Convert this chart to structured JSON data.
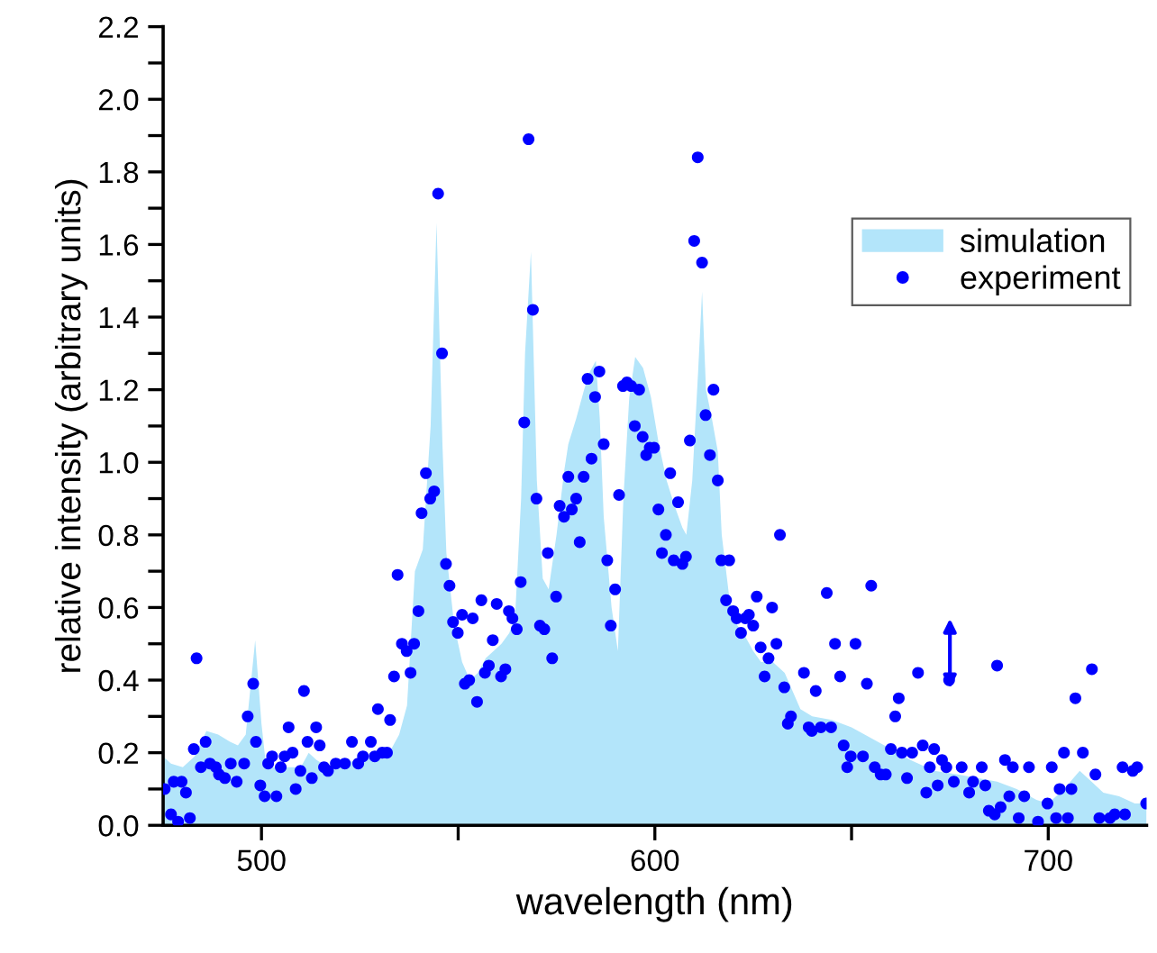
{
  "chart_data": {
    "type": "area",
    "xlabel": "wavelength (nm)",
    "ylabel": "relative intensity (arbitrary units)",
    "xlim": [
      475,
      725
    ],
    "xticks": [
      500,
      {
        "value": 550,
        "label": null
      },
      600,
      {
        "value": 650,
        "label": null
      },
      700
    ],
    "ylim": [
      0,
      2.2
    ],
    "yticks": [
      {
        "value": 0,
        "label": "0.0"
      },
      {
        "value": 0.1,
        "label": null
      },
      {
        "value": 0.2,
        "label": "0.2"
      },
      {
        "value": 0.3,
        "label": null
      },
      {
        "value": 0.4,
        "label": "0.4"
      },
      {
        "value": 0.5,
        "label": null
      },
      {
        "value": 0.6,
        "label": "0.6"
      },
      {
        "value": 0.7,
        "label": null
      },
      {
        "value": 0.8,
        "label": "0.8"
      },
      {
        "value": 0.9,
        "label": null
      },
      {
        "value": 1.0,
        "label": "1.0"
      },
      {
        "value": 1.1,
        "label": null
      },
      {
        "value": 1.2,
        "label": "1.2"
      },
      {
        "value": 1.3,
        "label": null
      },
      {
        "value": 1.4,
        "label": "1.4"
      },
      {
        "value": 1.5,
        "label": null
      },
      {
        "value": 1.6,
        "label": "1.6"
      },
      {
        "value": 1.7,
        "label": null
      },
      {
        "value": 1.8,
        "label": "1.8"
      },
      {
        "value": 1.9,
        "label": null
      },
      {
        "value": 2.0,
        "label": "2.0"
      },
      {
        "value": 2.1,
        "label": null
      },
      {
        "value": 2.2,
        "label": "2.2"
      }
    ],
    "grid": false,
    "legend": "top right",
    "series": [
      {
        "name": "simulation",
        "color": "#b3e5fa",
        "x": [
          475,
          477,
          480,
          483,
          486,
          489,
          492,
          494,
          496,
          498.4,
          500,
          501,
          503,
          506,
          510,
          512,
          514,
          517,
          520,
          525,
          530,
          533,
          535,
          537,
          539,
          541,
          543,
          544.5,
          546,
          547,
          549,
          551,
          553,
          555,
          557,
          559,
          561,
          563,
          564.5,
          566,
          567,
          568.5,
          570,
          571.5,
          573,
          575,
          577,
          578,
          580,
          582,
          583.5,
          585,
          586,
          587,
          589,
          590.6,
          592,
          593.5,
          595,
          597,
          599,
          601,
          603,
          605,
          607,
          608,
          609.5,
          611,
          612,
          613,
          614.5,
          616,
          617,
          619,
          621,
          623,
          625,
          627,
          630,
          633,
          637,
          640,
          645,
          650,
          655,
          660,
          665,
          671,
          677,
          682,
          687,
          692,
          697,
          700,
          704,
          708,
          711,
          714,
          718,
          722,
          725
        ],
        "values": [
          0.19,
          0.17,
          0.16,
          0.19,
          0.26,
          0.25,
          0.23,
          0.22,
          0.25,
          0.51,
          0.28,
          0.18,
          0.16,
          0.16,
          0.16,
          0.2,
          0.18,
          0.16,
          0.17,
          0.18,
          0.19,
          0.21,
          0.25,
          0.33,
          0.7,
          0.76,
          1.1,
          1.66,
          1.05,
          0.75,
          0.55,
          0.45,
          0.4,
          0.42,
          0.46,
          0.48,
          0.5,
          0.53,
          0.58,
          0.9,
          1.3,
          1.58,
          0.95,
          0.68,
          0.65,
          0.8,
          0.98,
          1.05,
          1.12,
          1.2,
          1.25,
          1.28,
          1.12,
          0.85,
          0.6,
          0.48,
          0.9,
          1.18,
          1.29,
          1.26,
          1.18,
          1.05,
          0.95,
          0.88,
          0.82,
          0.8,
          0.95,
          1.25,
          1.47,
          1.2,
          1.12,
          1.03,
          0.8,
          0.62,
          0.55,
          0.52,
          0.48,
          0.45,
          0.45,
          0.42,
          0.32,
          0.3,
          0.29,
          0.27,
          0.24,
          0.21,
          0.18,
          0.15,
          0.14,
          0.13,
          0.12,
          0.1,
          0.07,
          0.06,
          0.1,
          0.15,
          0.12,
          0.09,
          0.08,
          0.06,
          0.06
        ]
      },
      {
        "name": "experiment",
        "type": "scatter",
        "marker": "circle",
        "color": "#0000ff",
        "x": [
          475.4,
          477.0,
          477.7,
          479.7,
          478.8,
          480.8,
          481.8,
          482.8,
          483.5,
          484.6,
          485.8,
          486.9,
          488.4,
          489.2,
          490.7,
          492.2,
          493.7,
          495.6,
          496.5,
          497.9,
          498.6,
          499.7,
          500.8,
          501.7,
          502.7,
          503.8,
          504.9,
          505.9,
          506.9,
          507.9,
          508.7,
          509.9,
          510.8,
          511.7,
          512.8,
          513.9,
          514.8,
          515.9,
          516.9,
          518.9,
          521.2,
          523.0,
          524.6,
          525.8,
          527.8,
          528.8,
          529.6,
          530.7,
          531.9,
          532.7,
          533.7,
          534.6,
          535.7,
          536.9,
          537.9,
          538.8,
          539.9,
          540.7,
          541.8,
          542.9,
          543.9,
          544.9,
          545.9,
          546.9,
          547.8,
          548.7,
          549.9,
          551.0,
          551.7,
          552.8,
          553.7,
          554.8,
          555.9,
          556.8,
          557.8,
          558.8,
          559.8,
          560.9,
          562.0,
          562.9,
          563.8,
          564.9,
          565.9,
          566.8,
          567.9,
          569.0,
          569.9,
          570.8,
          571.9,
          572.8,
          573.9,
          574.9,
          575.8,
          576.9,
          578.0,
          578.9,
          580.0,
          580.9,
          581.9,
          582.9,
          583.9,
          584.8,
          585.9,
          587.0,
          587.9,
          588.8,
          589.9,
          590.9,
          591.9,
          592.9,
          594.0,
          594.9,
          596.0,
          596.9,
          597.8,
          598.7,
          599.8,
          600.9,
          601.8,
          602.8,
          603.9,
          604.8,
          605.9,
          607.0,
          607.9,
          608.9,
          610.0,
          610.9,
          612.0,
          612.9,
          614.0,
          614.9,
          616.0,
          616.9,
          618.1,
          618.9,
          619.9,
          620.8,
          621.9,
          623.0,
          623.9,
          625.0,
          625.9,
          626.9,
          627.9,
          628.9,
          629.8,
          630.9,
          631.8,
          632.9,
          633.8,
          634.6,
          637.9,
          639.1,
          639.9,
          640.9,
          642.2,
          643.7,
          644.8,
          645.8,
          647.1,
          648.0,
          648.9,
          649.8,
          651.0,
          652.9,
          653.9,
          655.0,
          655.9,
          657.4,
          658.7,
          660.0,
          661.1,
          662.0,
          662.8,
          664.1,
          665.4,
          666.9,
          668.1,
          669.0,
          669.9,
          671.0,
          671.9,
          673.0,
          674.1,
          674.8,
          676.0,
          678.0,
          679.9,
          680.9,
          683.1,
          684.0,
          684.9,
          686.4,
          687.0,
          687.9,
          689.0,
          690.1,
          691.0,
          692.5,
          693.9,
          695.1,
          697.4,
          699.8,
          700.9,
          702.0,
          702.9,
          704.0,
          705.0,
          705.9,
          706.9,
          708.8,
          711.1,
          712.0,
          713.0,
          715.7,
          716.9,
          718.9,
          719.5,
          721.5,
          722.6,
          724.9
        ],
        "values": [
          0.1,
          0.03,
          0.12,
          0.12,
          0.01,
          0.09,
          0.02,
          0.21,
          0.46,
          0.16,
          0.23,
          0.17,
          0.16,
          0.14,
          0.13,
          0.17,
          0.12,
          0.17,
          0.3,
          0.39,
          0.23,
          0.11,
          0.08,
          0.17,
          0.19,
          0.08,
          0.16,
          0.19,
          0.27,
          0.2,
          0.1,
          0.15,
          0.37,
          0.23,
          0.13,
          0.27,
          0.22,
          0.16,
          0.15,
          0.17,
          0.17,
          0.23,
          0.17,
          0.19,
          0.23,
          0.19,
          0.32,
          0.2,
          0.2,
          0.29,
          0.41,
          0.69,
          0.5,
          0.48,
          0.42,
          0.5,
          0.59,
          0.86,
          0.97,
          0.9,
          0.92,
          1.74,
          1.3,
          0.72,
          0.66,
          0.56,
          0.53,
          0.58,
          0.39,
          0.4,
          0.57,
          0.34,
          0.62,
          0.42,
          0.44,
          0.51,
          0.61,
          0.41,
          0.43,
          0.59,
          0.57,
          0.54,
          0.67,
          1.11,
          1.89,
          1.42,
          0.9,
          0.55,
          0.54,
          0.75,
          0.46,
          0.63,
          0.88,
          0.85,
          0.96,
          0.87,
          0.9,
          0.78,
          0.96,
          1.23,
          1.01,
          1.18,
          1.25,
          1.05,
          0.73,
          0.55,
          0.65,
          0.91,
          1.21,
          1.22,
          1.21,
          1.1,
          1.2,
          1.07,
          1.02,
          1.04,
          1.04,
          0.87,
          0.75,
          0.8,
          0.97,
          0.73,
          0.89,
          0.72,
          0.74,
          1.06,
          1.61,
          1.84,
          1.55,
          1.13,
          1.02,
          1.2,
          0.95,
          0.73,
          0.62,
          0.73,
          0.59,
          0.57,
          0.53,
          0.57,
          0.58,
          0.55,
          0.63,
          0.49,
          0.41,
          0.46,
          0.6,
          0.5,
          0.8,
          0.38,
          0.28,
          0.3,
          0.42,
          0.27,
          0.26,
          0.37,
          0.27,
          0.64,
          0.27,
          0.5,
          0.41,
          0.22,
          0.16,
          0.19,
          0.5,
          0.19,
          0.39,
          0.66,
          0.16,
          0.14,
          0.14,
          0.21,
          0.3,
          0.35,
          0.2,
          0.13,
          0.2,
          0.42,
          0.22,
          0.09,
          0.16,
          0.21,
          0.11,
          0.18,
          0.16,
          0.4,
          0.12,
          0.16,
          0.09,
          0.12,
          0.16,
          0.11,
          0.04,
          0.03,
          0.44,
          0.05,
          0.18,
          0.08,
          0.16,
          0.02,
          0.08,
          0.16,
          0.01,
          0.06,
          0.16,
          0.02,
          0.1,
          0.2,
          0.02,
          0.1,
          0.35,
          0.2,
          0.43,
          0.14,
          0.02,
          0.02,
          0.03,
          0.16,
          0.03,
          0.15,
          0.16,
          0.06
        ]
      }
    ]
  }
}
